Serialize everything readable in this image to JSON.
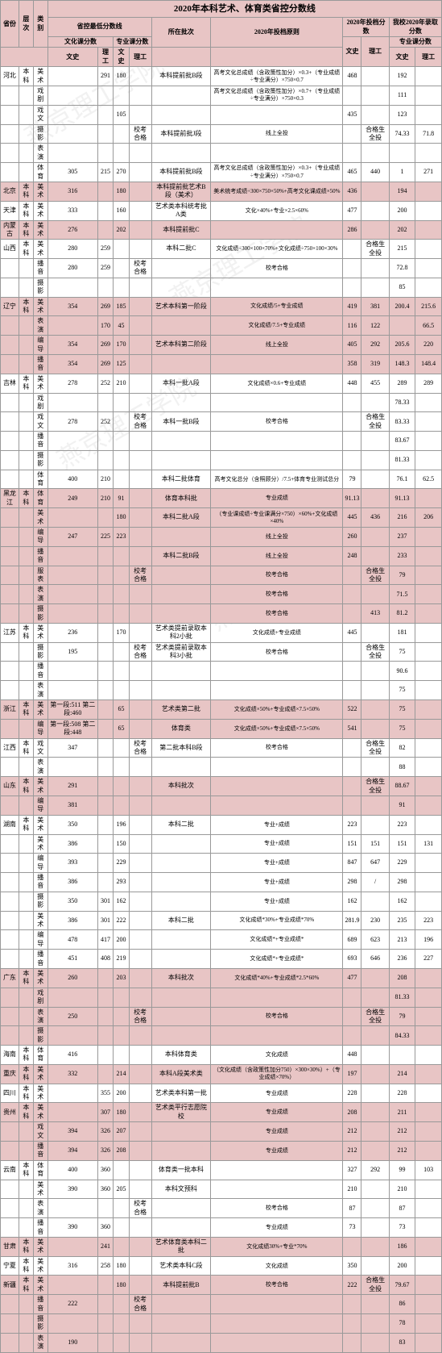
{
  "title": "2020年本科艺术、体育类省控分数线",
  "headers": {
    "province": "省份",
    "level": "层次",
    "category": "类别",
    "minScore": "省控最低分数线",
    "cultureScore": "文化课分数",
    "majorScore": "专业课分数",
    "ws": "文史",
    "lg": "理工",
    "batch": "所在批次",
    "rule": "2020年投档原则",
    "archiveScore": "2020年投档分数",
    "ourScore": "我校2020年录取分数",
    "ourMajor": "专业课分数"
  },
  "watermark": "燕京理工学院",
  "rows": [
    {
      "prov": "河北",
      "lvl": "本科",
      "cat": "美术",
      "cws": "",
      "clg": "291",
      "mws": "180",
      "mlg": "",
      "batch": "本科提前批B段",
      "rule": "高考文化总成绩（含政策性加分）×0.3+（专业成绩÷专业满分）×750×0.7",
      "aws": "468",
      "alg": "",
      "ows": "192",
      "olg": ""
    },
    {
      "cat": "戏剧",
      "mws": "",
      "batch": "",
      "rule": "高考文化总成绩（含政策性加分）×0.7+（专业成绩÷专业满分）×750×0.3",
      "aws": "",
      "ows": "111"
    },
    {
      "cat": "戏文",
      "mws": "105",
      "batch": "",
      "rule": "",
      "aws": "435",
      "ows": "123"
    },
    {
      "cat": "摄影",
      "mws": "",
      "mlg": "校考合格",
      "batch": "本科提前批J段",
      "rule": "线上全投",
      "aws": "",
      "alg": "合格生全投",
      "ows": "74.33",
      "olg": "71.8"
    },
    {
      "cat": "表演",
      "mws": "",
      "batch": "",
      "rule": "",
      "aws": "",
      "ows": ""
    },
    {
      "cat": "体育",
      "cws": "305",
      "clg": "215",
      "mws": "270",
      "batch": "本科提前批B段",
      "rule": "高考文化总成绩（含政策性加分）×0.3+（专业成绩÷专业满分）×750×0.7",
      "aws": "465",
      "alg": "440",
      "ows": "1",
      "olg": "271"
    },
    {
      "prov": "北京",
      "lvl": "本科",
      "cat": "美术",
      "cws": "316",
      "mws": "180",
      "batch": "本科提前批艺术B段（美术）",
      "rule": "美术统考成绩÷300×750×50%+高考文化课成绩×50%",
      "aws": "436",
      "ows": "194",
      "pink": true
    },
    {
      "prov": "天津",
      "lvl": "本科",
      "cat": "美术",
      "cws": "333",
      "mws": "160",
      "batch": "艺术类本科统考批A类",
      "rule": "文化×40%+专业×2.5×60%",
      "aws": "477",
      "ows": "200"
    },
    {
      "prov": "内蒙古",
      "lvl": "本科",
      "cat": "美术",
      "cws": "276",
      "mws": "202",
      "batch": "本科提前批C",
      "rule": "",
      "aws": "286",
      "ows": "202",
      "pink": true
    },
    {
      "prov": "山西",
      "lvl": "本科",
      "cat": "美术",
      "cws": "280",
      "clg": "259",
      "mws": "",
      "batch": "本科二批C",
      "rule": "文化成绩÷300×100×70%+文化成绩÷750×100×30%",
      "aws": "",
      "alg": "合格生全投",
      "ows": "215"
    },
    {
      "cat": "播音",
      "cws": "280",
      "clg": "259",
      "mws": "",
      "mlg": "校考合格",
      "batch": "",
      "rule": "校考合格",
      "ows": "72.8"
    },
    {
      "cat": "摄影",
      "mws": "",
      "batch": "",
      "rule": "",
      "ows": "85"
    },
    {
      "prov": "辽宁",
      "lvl": "本科",
      "cat": "美术",
      "cws": "354",
      "clg": "269",
      "mws": "185",
      "batch": "艺术本科第一阶段",
      "rule": "文化成绩/5+专业成绩",
      "aws": "419",
      "alg": "381",
      "ows": "200.4",
      "olg": "215.6",
      "pink": true
    },
    {
      "cat": "表演",
      "cws": "",
      "clg": "170",
      "mws": "45",
      "batch": "",
      "rule": "文化成绩/7.5+专业成绩",
      "aws": "116",
      "alg": "122",
      "ows": "",
      "olg": "66.5",
      "pink": true
    },
    {
      "cat": "编导",
      "cws": "354",
      "clg": "269",
      "mws": "170",
      "batch": "艺术本科第二阶段",
      "rule": "线上全投",
      "aws": "405",
      "alg": "292",
      "ows": "205.6",
      "olg": "220",
      "pink": true
    },
    {
      "cat": "播音",
      "cws": "354",
      "clg": "269",
      "mws": "125",
      "batch": "",
      "rule": "",
      "aws": "358",
      "alg": "319",
      "ows": "148.3",
      "olg": "148.4",
      "pink": true
    },
    {
      "prov": "吉林",
      "lvl": "本科",
      "cat": "美术",
      "cws": "278",
      "clg": "252",
      "mws": "210",
      "batch": "本科一批A段",
      "rule": "文化成绩×0.6+专业成绩",
      "aws": "448",
      "alg": "455",
      "ows": "289",
      "olg": "289"
    },
    {
      "cat": "戏剧",
      "mws": "",
      "batch": "",
      "rule": "",
      "ows": "78.33"
    },
    {
      "cat": "戏文",
      "cws": "278",
      "clg": "252",
      "mws": "",
      "mlg": "校考合格",
      "batch": "本科一批B段",
      "rule": "校考合格",
      "alg": "合格生全投",
      "ows": "83.33"
    },
    {
      "cat": "播音",
      "mws": "",
      "batch": "",
      "rule": "",
      "ows": "83.67"
    },
    {
      "cat": "摄影",
      "mws": "",
      "batch": "",
      "rule": "",
      "ows": "81.33"
    },
    {
      "cat": "体育",
      "cws": "400",
      "clg": "210",
      "mws": "",
      "batch": "本科二批体育",
      "rule": "高考文化总分（含照顾分）/7.5+体育专业测试总分",
      "aws": "79",
      "ows": "76.1",
      "olg": "62.5"
    },
    {
      "prov": "黑龙江",
      "lvl": "本科",
      "cat": "体育",
      "cws": "249",
      "clg": "210",
      "mws": "91",
      "batch": "体育本科批",
      "rule": "专业成绩",
      "aws": "91.13",
      "ows": "91.13",
      "pink": true
    },
    {
      "cat": "美术",
      "cws": "",
      "mws": "180",
      "batch": "本科二批A段",
      "rule": "（专业课成绩÷专业课满分×750）×60%+文化成绩×40%",
      "aws": "445",
      "alg": "436",
      "ows": "216",
      "olg": "206",
      "pink": true
    },
    {
      "cat": "编导",
      "cws": "247",
      "clg": "225",
      "mws": "223",
      "batch": "",
      "rule": "线上全投",
      "aws": "260",
      "ows": "237",
      "pink": true
    },
    {
      "cat": "播音",
      "mws": "",
      "batch": "本科二批B段",
      "rule": "线上全投",
      "aws": "248",
      "ows": "233",
      "pink": true
    },
    {
      "cat": "服表",
      "mws": "",
      "mlg": "校考合格",
      "batch": "",
      "rule": "校考合格",
      "aws": "",
      "alg": "合格生全投",
      "ows": "79",
      "pink": true
    },
    {
      "cat": "表演",
      "mws": "",
      "batch": "",
      "rule": "校考合格",
      "ows": "71.5",
      "pink": true
    },
    {
      "cat": "摄影",
      "mws": "",
      "batch": "",
      "rule": "校考合格",
      "aws": "",
      "alg": "413",
      "ows": "81.2",
      "pink": true
    },
    {
      "prov": "江苏",
      "lvl": "本科",
      "cat": "美术",
      "cws": "236",
      "mws": "170",
      "batch": "艺术类提前录取本科2小批",
      "rule": "文化成绩+专业成绩",
      "aws": "445",
      "ows": "181"
    },
    {
      "cat": "摄影",
      "cws": "195",
      "mws": "",
      "mlg": "校考合格",
      "batch": "艺术类提前录取本科3小批",
      "rule": "校考合格",
      "aws": "",
      "alg": "合格生全投",
      "ows": "75"
    },
    {
      "cat": "播音",
      "mws": "",
      "batch": "",
      "rule": "",
      "ows": "90.6"
    },
    {
      "cat": "表演",
      "mws": "",
      "batch": "",
      "rule": "",
      "ows": "75"
    },
    {
      "prov": "浙江",
      "lvl": "本科",
      "cat": "美术",
      "cws": "第一段:511 第二段:460",
      "mws": "65",
      "batch": "艺术类第二批",
      "rule": "文化成绩×50%+专业成绩×7.5×50%",
      "aws": "522",
      "ows": "75",
      "pink": true
    },
    {
      "cat": "编导",
      "cws": "第一段:508 第二段:448",
      "mws": "65",
      "batch": "体育类",
      "rule": "文化成绩×50%+专业成绩×7.5×50%",
      "aws": "541",
      "ows": "75",
      "pink": true
    },
    {
      "prov": "江西",
      "lvl": "本科",
      "cat": "戏文",
      "cws": "347",
      "mws": "",
      "mlg": "校考合格",
      "batch": "第二批本科B段",
      "rule": "校考合格",
      "aws": "",
      "alg": "合格生全投",
      "ows": "82"
    },
    {
      "cat": "表演",
      "mws": "",
      "batch": "",
      "rule": "",
      "ows": "88"
    },
    {
      "prov": "山东",
      "lvl": "本科",
      "cat": "美术",
      "cws": "291",
      "mws": "",
      "batch": "本科批次",
      "rule": "",
      "aws": "",
      "alg": "合格生全投",
      "ows": "88.67",
      "pink": true
    },
    {
      "cat": "编导",
      "cws": "381",
      "mws": "",
      "batch": "",
      "rule": "",
      "ows": "91",
      "pink": true
    },
    {
      "prov": "湖南",
      "lvl": "本科",
      "cat": "美术",
      "cws": "350",
      "clg": "",
      "mws": "196",
      "batch": "本科二批",
      "rule": "专业+成绩",
      "aws": "223",
      "alg": "",
      "ows": "223"
    },
    {
      "cat": "美术",
      "cws": "386",
      "clg": "",
      "mws": "150",
      "batch": "",
      "rule": "专业+成绩",
      "aws": "151",
      "alg": "151",
      "ows": "151",
      "olg": "131"
    },
    {
      "cat": "编导",
      "cws": "393",
      "clg": "",
      "mws": "229",
      "batch": "",
      "rule": "专业+成绩",
      "aws": "847",
      "alg": "647",
      "ows": "229"
    },
    {
      "cat": "播音",
      "cws": "386",
      "clg": "",
      "mws": "293",
      "batch": "",
      "rule": "专业+成绩",
      "aws": "298",
      "alg": "/",
      "ows": "298"
    },
    {
      "cat": "摄影",
      "cws": "350",
      "clg": "301",
      "mws": "162",
      "batch": "",
      "rule": "专业+成绩",
      "aws": "162",
      "alg": "",
      "ows": "162"
    },
    {
      "cat": "美术",
      "cws": "386",
      "clg": "301",
      "mws": "222",
      "batch": "本科二批",
      "rule": "文化成绩*30%+专业成绩*70%",
      "aws": "281.9",
      "alg": "230",
      "ows": "235",
      "olg": "223"
    },
    {
      "cat": "编导",
      "cws": "478",
      "clg": "417",
      "mws": "200",
      "batch": "",
      "rule": "文化成绩*+专业成绩*",
      "aws": "689",
      "alg": "623",
      "ows": "213",
      "olg": "196"
    },
    {
      "cat": "播音",
      "cws": "451",
      "clg": "408",
      "mws": "219",
      "batch": "",
      "rule": "文化成绩*+专业成绩*",
      "aws": "693",
      "alg": "646",
      "ows": "236",
      "olg": "227"
    },
    {
      "prov": "广东",
      "lvl": "本科",
      "cat": "美术",
      "cws": "260",
      "mws": "203",
      "batch": "本科批次",
      "rule": "文化成绩*40%+专业成绩*2.5*60%",
      "aws": "477",
      "ows": "208",
      "pink": true
    },
    {
      "cat": "戏剧",
      "mws": "",
      "batch": "",
      "rule": "",
      "ows": "81.33",
      "pink": true
    },
    {
      "cat": "表演",
      "cws": "250",
      "mws": "",
      "mlg": "校考合格",
      "batch": "",
      "rule": "校考合格",
      "alg": "合格生全投",
      "ows": "79",
      "pink": true
    },
    {
      "cat": "摄影",
      "mws": "",
      "batch": "",
      "rule": "",
      "ows": "84.33",
      "pink": true
    },
    {
      "prov": "海南",
      "lvl": "本科",
      "cat": "体育",
      "cws": "416",
      "mws": "",
      "batch": "本科体育类",
      "rule": "文化成绩",
      "aws": "448",
      "ows": ""
    },
    {
      "prov": "重庆",
      "lvl": "本科",
      "cat": "美术",
      "cws": "332",
      "mws": "214",
      "batch": "本科A段美术类",
      "rule": "（文化成绩（含政策性加分750）×300×30%）+（专业成绩×70%）",
      "aws": "197",
      "ows": "214",
      "pink": true
    },
    {
      "prov": "四川",
      "lvl": "本科",
      "cat": "美术",
      "cws": "",
      "clg": "355",
      "mws": "200",
      "batch": "艺术类本科第一批",
      "rule": "专业成绩",
      "aws": "228",
      "ows": "228"
    },
    {
      "prov": "贵州",
      "lvl": "本科",
      "cat": "美术",
      "cws": "",
      "clg": "307",
      "mws": "180",
      "batch": "艺术类平行志愿院校",
      "rule": "专业成绩",
      "aws": "208",
      "ows": "211",
      "pink": true
    },
    {
      "cat": "戏文",
      "cws": "394",
      "clg": "326",
      "mws": "207",
      "batch": "",
      "rule": "专业成绩",
      "aws": "212",
      "ows": "212",
      "pink": true
    },
    {
      "cat": "播音",
      "cws": "394",
      "clg": "326",
      "mws": "208",
      "batch": "",
      "rule": "专业成绩",
      "aws": "212",
      "ows": "212",
      "pink": true
    },
    {
      "prov": "云南",
      "lvl": "本科",
      "cat": "体育",
      "cws": "400",
      "clg": "360",
      "mws": "",
      "batch": "体育类一批本科",
      "rule": "",
      "aws": "327",
      "alg": "292",
      "ows": "99",
      "olg": "103"
    },
    {
      "cat": "美术",
      "cws": "390",
      "clg": "360",
      "mws": "205",
      "batch": "本科文预科",
      "rule": "",
      "aws": "210",
      "ows": "210"
    },
    {
      "cat": "表演",
      "cws": "",
      "mws": "",
      "mlg": "校考合格",
      "batch": "",
      "rule": "校考合格",
      "aws": "87",
      "ows": "87"
    },
    {
      "cat": "播音",
      "cws": "390",
      "clg": "360",
      "mws": "",
      "batch": "",
      "rule": "专业成绩",
      "aws": "73",
      "ows": "73"
    },
    {
      "prov": "甘肃",
      "lvl": "本科",
      "cat": "美术",
      "cws": "",
      "clg": "241",
      "mws": "",
      "batch": "艺术体育类本科二批",
      "rule": "文化成绩30%+专业*70%",
      "aws": "",
      "ows": "186",
      "pink": true
    },
    {
      "prov": "宁夏",
      "lvl": "本科",
      "cat": "美术",
      "cws": "316",
      "clg": "258",
      "mws": "180",
      "batch": "艺术类本科C段",
      "rule": "文化成绩",
      "aws": "350",
      "ows": "200"
    },
    {
      "prov": "新疆",
      "lvl": "本科",
      "cat": "美术",
      "cws": "",
      "clg": "",
      "mws": "180",
      "batch": "本科提前批B",
      "rule": "校考合格",
      "aws": "222",
      "alg": "合格生全投",
      "ows": "79.67",
      "pink": true
    },
    {
      "cat": "播音",
      "cws": "222",
      "mws": "",
      "mlg": "校考合格",
      "batch": "",
      "rule": "",
      "ows": "86",
      "pink": true
    },
    {
      "cat": "摄影",
      "mws": "",
      "batch": "",
      "rule": "",
      "ows": "78",
      "pink": true
    },
    {
      "cat": "表演",
      "cws": "190",
      "mws": "",
      "batch": "",
      "rule": "",
      "ows": "83",
      "pink": true
    }
  ]
}
